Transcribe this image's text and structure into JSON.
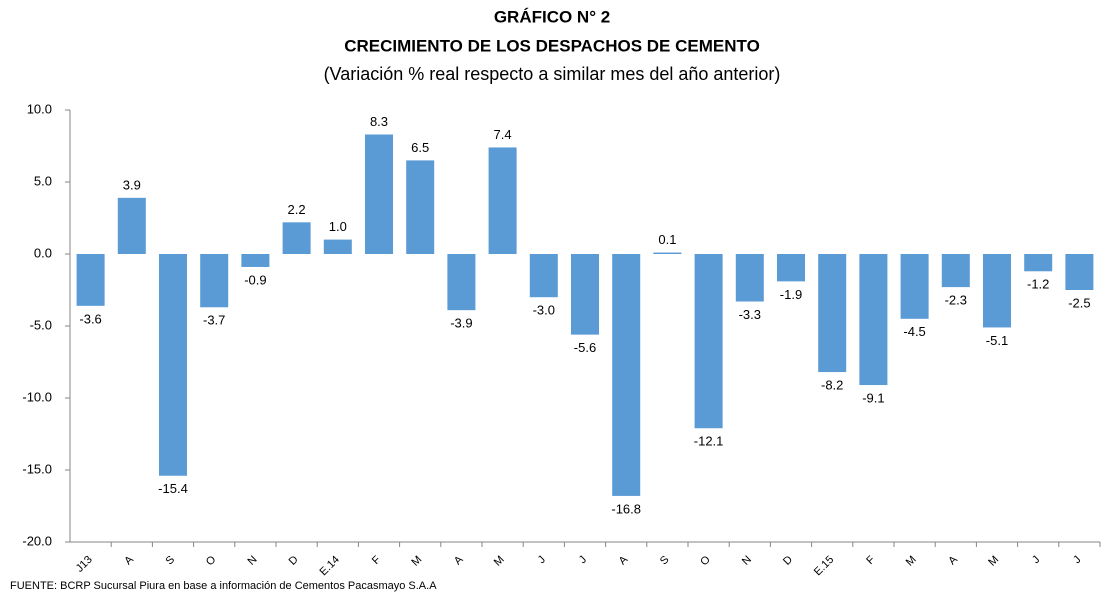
{
  "chart_data": {
    "type": "bar",
    "title": "GRÁFICO N° 2",
    "subtitle": "CRECIMIENTO DE LOS DESPACHOS DE CEMENTO",
    "y_axis_label": "(Variación % real respecto a similar mes del año anterior)",
    "source": "FUENTE:   BCRP Sucursal Piura  en base a información de Cementos  Pacasmayo S.A.A",
    "categories": [
      "J13",
      "A",
      "S",
      "O",
      "N",
      "D",
      "E.14",
      "F",
      "M",
      "A",
      "M",
      "J",
      "J",
      "A",
      "S",
      "O",
      "N",
      "D",
      "E.15",
      "F",
      "M",
      "A",
      "M",
      "J",
      "J"
    ],
    "values": [
      -3.6,
      3.9,
      -15.4,
      -3.7,
      -0.9,
      2.2,
      1.0,
      8.3,
      6.5,
      -3.9,
      7.4,
      -3.0,
      -5.6,
      -16.8,
      0.1,
      -12.1,
      -3.3,
      -1.9,
      -8.2,
      -9.1,
      -4.5,
      -2.3,
      -5.1,
      -1.2,
      -2.5
    ],
    "value_labels": [
      "-3.6",
      "3.9",
      "-15.4",
      "-3.7",
      "-0.9",
      "2.2",
      "1.0",
      "8.3",
      "6.5",
      "-3.9",
      "7.4",
      "-3.0",
      "-5.6",
      "-16.8",
      "0.1",
      "-12.1",
      "-3.3",
      "-1.9",
      "-8.2",
      "-9.1",
      "-4.5",
      "-2.3",
      "-5.1",
      "-1.2",
      "-2.5"
    ],
    "color": "#5b9bd5",
    "ylim": [
      -20,
      10
    ],
    "yticks": [
      {
        "value": -20,
        "label": "-20.0"
      },
      {
        "value": -15,
        "label": "-15.0"
      },
      {
        "value": -10,
        "label": "-10.0"
      },
      {
        "value": -5,
        "label": "-5.0"
      },
      {
        "value": 0,
        "label": "0.0"
      },
      {
        "value": 5,
        "label": "5.0"
      },
      {
        "value": 10,
        "label": "10.0"
      }
    ],
    "grid": false
  }
}
